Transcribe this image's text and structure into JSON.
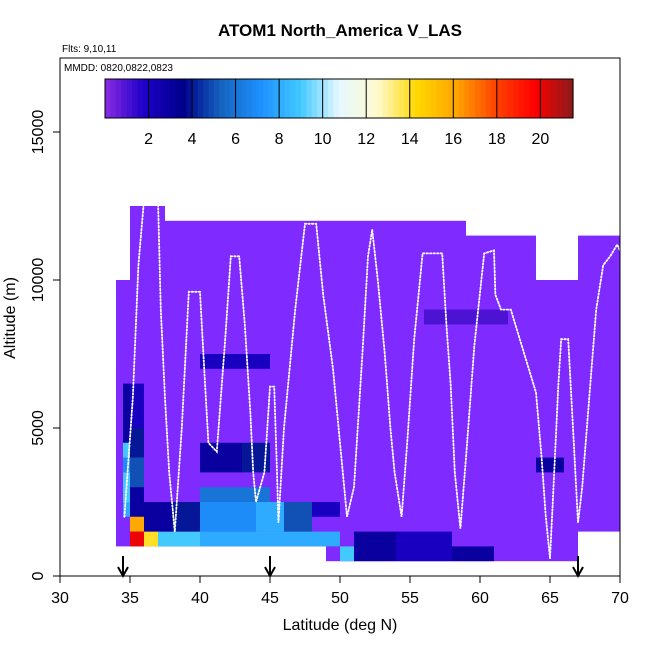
{
  "chart_data": {
    "type": "heatmap",
    "title": "ATOM1 North_America V_LAS",
    "flights_label": "Flts: 9,10,11",
    "dates_label": "MMDD: 0820,0822,0823",
    "xlabel": "Latitude (deg N)",
    "ylabel": "Altitude (m)",
    "xlim": [
      30,
      70
    ],
    "ylim": [
      0,
      17500
    ],
    "xticks": [
      "30",
      "35",
      "40",
      "45",
      "50",
      "55",
      "60",
      "65",
      "70"
    ],
    "yticks": [
      "0",
      "5000",
      "10000",
      "15000"
    ],
    "ytick_values": [
      0,
      5000,
      10000,
      15000
    ],
    "xtick_values": [
      30,
      35,
      40,
      45,
      50,
      55,
      60,
      65,
      70
    ],
    "colorbar": {
      "range": [
        0,
        21.5
      ],
      "ticks": [
        "2",
        "4",
        "6",
        "8",
        "10",
        "12",
        "14",
        "16",
        "18",
        "20"
      ],
      "tick_values": [
        2,
        4,
        6,
        8,
        10,
        12,
        14,
        16,
        18,
        20
      ],
      "colors": [
        "#8a2be2",
        "#1c00c8",
        "#00008b",
        "#1565c0",
        "#1e90ff",
        "#40c8ff",
        "#e6f8ff",
        "#fffacd",
        "#ffd700",
        "#ffa500",
        "#ff4500",
        "#ff0000",
        "#8b1a1a"
      ]
    },
    "background_color": "#7f2aff",
    "arrows_at_latitude": [
      34.5,
      45,
      67
    ],
    "cells": [
      {
        "lat": [
          34.5,
          35.0
        ],
        "alt": [
          5500,
          6500
        ],
        "value": 3
      },
      {
        "lat": [
          34.5,
          35.0
        ],
        "alt": [
          4500,
          5500
        ],
        "value": 3
      },
      {
        "lat": [
          34.5,
          35.0
        ],
        "alt": [
          4000,
          4500
        ],
        "value": 9
      },
      {
        "lat": [
          34.5,
          35.0
        ],
        "alt": [
          3500,
          4000
        ],
        "value": 7
      },
      {
        "lat": [
          34.5,
          35.0
        ],
        "alt": [
          3000,
          3500
        ],
        "value": 9
      },
      {
        "lat": [
          34.5,
          35.0
        ],
        "alt": [
          2500,
          3000
        ],
        "value": 9
      },
      {
        "lat": [
          34.5,
          35.0
        ],
        "alt": [
          2000,
          2500
        ],
        "value": 8
      },
      {
        "lat": [
          35.0,
          36.0
        ],
        "alt": [
          5000,
          6500
        ],
        "value": 2
      },
      {
        "lat": [
          35.0,
          36.0
        ],
        "alt": [
          4000,
          5000
        ],
        "value": 4
      },
      {
        "lat": [
          35.0,
          36.0
        ],
        "alt": [
          3000,
          4000
        ],
        "value": 5
      },
      {
        "lat": [
          35.0,
          36.0
        ],
        "alt": [
          2000,
          3000
        ],
        "value": 3
      },
      {
        "lat": [
          35.0,
          36.0
        ],
        "alt": [
          1500,
          2000
        ],
        "value": 16
      },
      {
        "lat": [
          35.0,
          36.0
        ],
        "alt": [
          1000,
          1500
        ],
        "value": 20
      },
      {
        "lat": [
          36.0,
          37.0
        ],
        "alt": [
          1000,
          1500
        ],
        "value": 14
      },
      {
        "lat": [
          37.0,
          40.0
        ],
        "alt": [
          1000,
          1500
        ],
        "value": 9
      },
      {
        "lat": [
          40.0,
          50.0
        ],
        "alt": [
          1000,
          1500
        ],
        "value": 8
      },
      {
        "lat": [
          50.0,
          51.0
        ],
        "alt": [
          500,
          1000
        ],
        "value": 9
      },
      {
        "lat": [
          51.0,
          54.0
        ],
        "alt": [
          500,
          1500
        ],
        "value": 3
      },
      {
        "lat": [
          54.0,
          58.0
        ],
        "alt": [
          500,
          1500
        ],
        "value": 2
      },
      {
        "lat": [
          58.0,
          61.0
        ],
        "alt": [
          500,
          1000
        ],
        "value": 3
      },
      {
        "lat": [
          36.0,
          38.0
        ],
        "alt": [
          1500,
          2500
        ],
        "value": 3
      },
      {
        "lat": [
          38.0,
          40.0
        ],
        "alt": [
          1500,
          2500
        ],
        "value": 4
      },
      {
        "lat": [
          40.0,
          44.0
        ],
        "alt": [
          1500,
          2500
        ],
        "value": 7
      },
      {
        "lat": [
          44.0,
          46.0
        ],
        "alt": [
          1500,
          2500
        ],
        "value": 8
      },
      {
        "lat": [
          46.0,
          48.0
        ],
        "alt": [
          1500,
          2500
        ],
        "value": 5
      },
      {
        "lat": [
          48.0,
          50.0
        ],
        "alt": [
          2000,
          2500
        ],
        "value": 2
      },
      {
        "lat": [
          40.0,
          45.0
        ],
        "alt": [
          2500,
          3000
        ],
        "value": 6
      },
      {
        "lat": [
          40.0,
          43.0
        ],
        "alt": [
          3500,
          4500
        ],
        "value": 3
      },
      {
        "lat": [
          43.0,
          45.0
        ],
        "alt": [
          3500,
          4500
        ],
        "value": 4
      },
      {
        "lat": [
          40.0,
          45.0
        ],
        "alt": [
          7000,
          7500
        ],
        "value": 2
      },
      {
        "lat": [
          56.0,
          62.0
        ],
        "alt": [
          8500,
          9000
        ],
        "value": 1
      },
      {
        "lat": [
          64.0,
          66.0
        ],
        "alt": [
          3500,
          4000
        ],
        "value": 3
      }
    ],
    "coverage": [
      {
        "lat": [
          34.0,
          35.0
        ],
        "alt": [
          1000,
          10000
        ]
      },
      {
        "lat": [
          35.0,
          37.5
        ],
        "alt": [
          1000,
          12500
        ]
      },
      {
        "lat": [
          37.5,
          49.0
        ],
        "alt": [
          1000,
          12000
        ]
      },
      {
        "lat": [
          49.0,
          59.0
        ],
        "alt": [
          500,
          12000
        ]
      },
      {
        "lat": [
          59.0,
          64.0
        ],
        "alt": [
          500,
          11500
        ]
      },
      {
        "lat": [
          64.0,
          67.0
        ],
        "alt": [
          500,
          10000
        ]
      },
      {
        "lat": [
          67.0,
          70.0
        ],
        "alt": [
          1500,
          11500
        ]
      }
    ],
    "flight_track": [
      [
        34.6,
        2000
      ],
      [
        35.2,
        6000
      ],
      [
        35.6,
        10500
      ],
      [
        36.0,
        12700
      ],
      [
        37.0,
        12700
      ],
      [
        37.2,
        9000
      ],
      [
        37.5,
        6000
      ],
      [
        37.8,
        3500
      ],
      [
        38.2,
        1500
      ],
      [
        38.7,
        5000
      ],
      [
        39.2,
        9600
      ],
      [
        40.0,
        9600
      ],
      [
        40.3,
        7000
      ],
      [
        40.6,
        4500
      ],
      [
        41.2,
        4200
      ],
      [
        41.8,
        8000
      ],
      [
        42.2,
        10800
      ],
      [
        42.8,
        10800
      ],
      [
        43.2,
        8500
      ],
      [
        43.6,
        5500
      ],
      [
        43.8,
        3500
      ],
      [
        44.0,
        2500
      ],
      [
        44.6,
        3500
      ],
      [
        45.0,
        6400
      ],
      [
        45.3,
        6400
      ],
      [
        45.5,
        3500
      ],
      [
        45.6,
        1800
      ],
      [
        46.0,
        5000
      ],
      [
        46.8,
        9000
      ],
      [
        47.5,
        11900
      ],
      [
        48.3,
        11900
      ],
      [
        48.8,
        9500
      ],
      [
        49.5,
        7000
      ],
      [
        50.0,
        4500
      ],
      [
        50.5,
        2000
      ],
      [
        51.0,
        3000
      ],
      [
        51.6,
        7500
      ],
      [
        52.0,
        10800
      ],
      [
        52.3,
        11700
      ],
      [
        52.7,
        10000
      ],
      [
        53.2,
        7500
      ],
      [
        53.6,
        5000
      ],
      [
        53.9,
        3500
      ],
      [
        54.4,
        2000
      ],
      [
        54.8,
        4500
      ],
      [
        55.3,
        8000
      ],
      [
        55.9,
        10900
      ],
      [
        57.3,
        10900
      ],
      [
        57.6,
        8500
      ],
      [
        57.9,
        6500
      ],
      [
        58.2,
        3500
      ],
      [
        58.6,
        1600
      ],
      [
        59.0,
        4000
      ],
      [
        59.6,
        7800
      ],
      [
        60.3,
        10900
      ],
      [
        61.0,
        11000
      ],
      [
        61.1,
        9500
      ],
      [
        61.5,
        9000
      ],
      [
        62.2,
        9000
      ],
      [
        64.0,
        6200
      ],
      [
        64.4,
        4000
      ],
      [
        64.7,
        2000
      ],
      [
        65.0,
        600
      ],
      [
        65.2,
        2500
      ],
      [
        65.6,
        6500
      ],
      [
        65.8,
        8000
      ],
      [
        66.3,
        8000
      ],
      [
        66.7,
        4500
      ],
      [
        67.0,
        1800
      ],
      [
        67.3,
        3000
      ],
      [
        67.8,
        6000
      ],
      [
        68.3,
        9000
      ],
      [
        68.8,
        10500
      ],
      [
        69.3,
        10800
      ],
      [
        69.8,
        11200
      ],
      [
        70.0,
        11000
      ]
    ]
  }
}
